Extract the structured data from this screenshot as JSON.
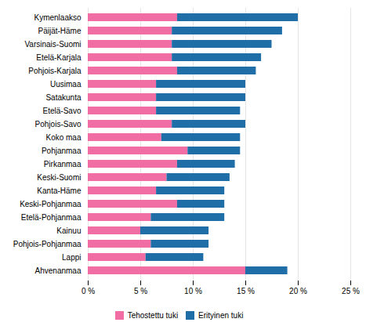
{
  "chart_data": {
    "type": "bar",
    "orientation": "horizontal",
    "stacked": true,
    "categories": [
      "Kymenlaakso",
      "Päijät-Häme",
      "Varsinais-Suomi",
      "Etelä-Karjala",
      "Pohjois-Karjala",
      "Uusimaa",
      "Satakunta",
      "Etelä-Savo",
      "Pohjois-Savo",
      "Koko maa",
      "Pohjanmaa",
      "Pirkanmaa",
      "Keski-Suomi",
      "Kanta-Häme",
      "Keski-Pohjanmaa",
      "Etelä-Pohjanmaa",
      "Kainuu",
      "Pohjois-Pohjanmaa",
      "Lappi",
      "Ahvenanmaa"
    ],
    "series": [
      {
        "name": "Tehostettu tuki",
        "color": "#F06EA3",
        "values": [
          8.5,
          8.0,
          8.0,
          8.0,
          8.5,
          6.5,
          6.5,
          6.5,
          8.0,
          7.0,
          9.5,
          8.5,
          7.5,
          6.5,
          8.5,
          6.0,
          5.0,
          6.0,
          5.5,
          15.0
        ]
      },
      {
        "name": "Erityinen tuki",
        "color": "#1F6EA8",
        "values": [
          11.5,
          10.5,
          9.5,
          8.5,
          7.5,
          8.5,
          8.5,
          8.0,
          7.0,
          7.5,
          5.0,
          5.5,
          6.0,
          6.5,
          4.5,
          7.0,
          6.5,
          5.5,
          5.5,
          4.0
        ]
      }
    ],
    "xlim": [
      0,
      25
    ],
    "xticks": [
      {
        "value": 0,
        "label": "0 %"
      },
      {
        "value": 5,
        "label": "5 %"
      },
      {
        "value": 10,
        "label": "10 %"
      },
      {
        "value": 15,
        "label": "15 %"
      },
      {
        "value": 20,
        "label": "20 %"
      },
      {
        "value": 25,
        "label": "25 %"
      }
    ],
    "grid": true,
    "legend": "bottom"
  }
}
